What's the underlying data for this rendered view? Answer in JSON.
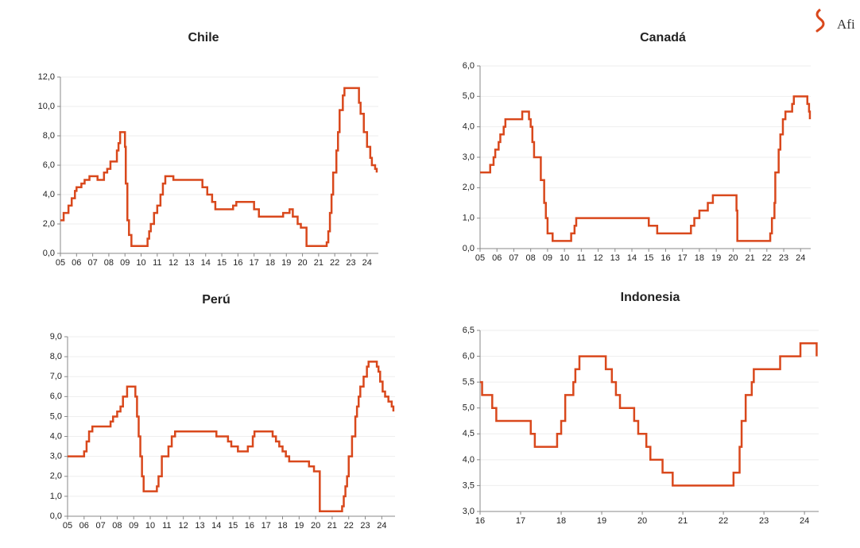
{
  "logo": "Afi",
  "chart_data": [
    {
      "type": "line",
      "title": "Chile",
      "color": "#d9481c",
      "grid": true,
      "step": true,
      "x": [
        5.0,
        5.2,
        5.5,
        5.7,
        5.9,
        6.0,
        6.3,
        6.5,
        6.8,
        7.3,
        7.7,
        7.9,
        8.1,
        8.5,
        8.6,
        8.7,
        9.0,
        9.05,
        9.15,
        9.25,
        9.4,
        10.4,
        10.5,
        10.6,
        10.8,
        11.0,
        11.2,
        11.35,
        11.5,
        12.0,
        13.8,
        14.1,
        14.4,
        14.6,
        15.7,
        15.9,
        17.0,
        17.3,
        18.8,
        19.2,
        19.4,
        19.7,
        19.9,
        20.25,
        21.5,
        21.6,
        21.7,
        21.8,
        21.9,
        22.1,
        22.2,
        22.3,
        22.5,
        22.6,
        23.5,
        23.6,
        23.8,
        24.0,
        24.2,
        24.3,
        24.5,
        24.6
      ],
      "values": [
        2.25,
        2.75,
        3.25,
        3.75,
        4.25,
        4.5,
        4.75,
        5.0,
        5.25,
        5.0,
        5.5,
        5.75,
        6.25,
        7.0,
        7.5,
        8.25,
        7.25,
        4.75,
        2.25,
        1.25,
        0.5,
        1.0,
        1.5,
        2.0,
        2.75,
        3.25,
        4.0,
        4.75,
        5.25,
        5.0,
        4.5,
        4.0,
        3.5,
        3.0,
        3.25,
        3.5,
        3.0,
        2.5,
        2.75,
        3.0,
        2.5,
        2.0,
        1.75,
        0.5,
        0.75,
        1.5,
        2.75,
        4.0,
        5.5,
        7.0,
        8.25,
        9.75,
        10.75,
        11.25,
        10.25,
        9.5,
        8.25,
        7.25,
        6.5,
        6.0,
        5.75,
        5.5
      ],
      "xlim": [
        5,
        24.7
      ],
      "xticks": [
        {
          "value": 5,
          "label": "05"
        },
        {
          "value": 6,
          "label": "06"
        },
        {
          "value": 7,
          "label": "07"
        },
        {
          "value": 8,
          "label": "08"
        },
        {
          "value": 9,
          "label": "09"
        },
        10,
        11,
        12,
        13,
        14,
        15,
        16,
        17,
        18,
        19,
        20,
        21,
        22,
        23,
        24
      ],
      "ylim": [
        0,
        12
      ],
      "yticks": [
        {
          "value": 0,
          "label": "0,0"
        },
        {
          "value": 2,
          "label": "2,0"
        },
        {
          "value": 4,
          "label": "4,0"
        },
        {
          "value": 6,
          "label": "6,0"
        },
        {
          "value": 8,
          "label": "8,0"
        },
        {
          "value": 10,
          "label": "10,0"
        },
        {
          "value": 12,
          "label": "12,0"
        }
      ]
    },
    {
      "type": "line",
      "title": "Canadá",
      "color": "#d9481c",
      "grid": true,
      "step": true,
      "x": [
        5.0,
        5.6,
        5.8,
        5.9,
        6.1,
        6.2,
        6.4,
        6.5,
        7.5,
        7.9,
        8.0,
        8.1,
        8.2,
        8.6,
        8.8,
        8.9,
        9.0,
        9.3,
        10.4,
        10.6,
        10.7,
        15.0,
        15.5,
        17.5,
        17.7,
        18.0,
        18.5,
        18.8,
        20.2,
        20.25,
        22.2,
        22.3,
        22.45,
        22.5,
        22.7,
        22.8,
        22.95,
        23.1,
        23.5,
        23.6,
        24.4,
        24.5,
        24.55
      ],
      "values": [
        2.5,
        2.75,
        3.0,
        3.25,
        3.5,
        3.75,
        4.0,
        4.25,
        4.5,
        4.25,
        4.0,
        3.5,
        3.0,
        2.25,
        1.5,
        1.0,
        0.5,
        0.25,
        0.5,
        0.75,
        1.0,
        0.75,
        0.5,
        0.75,
        1.0,
        1.25,
        1.5,
        1.75,
        1.25,
        0.25,
        0.5,
        1.0,
        1.5,
        2.5,
        3.25,
        3.75,
        4.25,
        4.5,
        4.75,
        5.0,
        4.75,
        4.5,
        4.25
      ],
      "xlim": [
        5,
        24.6
      ],
      "xticks": [
        {
          "value": 5,
          "label": "05"
        },
        {
          "value": 6,
          "label": "06"
        },
        {
          "value": 7,
          "label": "07"
        },
        {
          "value": 8,
          "label": "08"
        },
        {
          "value": 9,
          "label": "09"
        },
        10,
        11,
        12,
        13,
        14,
        15,
        16,
        17,
        18,
        19,
        20,
        21,
        22,
        23,
        24
      ],
      "ylim": [
        0,
        6
      ],
      "yticks": [
        {
          "value": 0,
          "label": "0,0"
        },
        {
          "value": 1,
          "label": "1,0"
        },
        {
          "value": 2,
          "label": "2,0"
        },
        {
          "value": 3,
          "label": "3,0"
        },
        {
          "value": 4,
          "label": "4,0"
        },
        {
          "value": 5,
          "label": "5,0"
        },
        {
          "value": 6,
          "label": "6,0"
        }
      ]
    },
    {
      "type": "line",
      "title": "Perú",
      "color": "#d9481c",
      "grid": true,
      "step": true,
      "x": [
        5.0,
        6.0,
        6.15,
        6.3,
        6.5,
        7.6,
        7.75,
        8.0,
        8.2,
        8.35,
        8.6,
        9.1,
        9.2,
        9.3,
        9.4,
        9.5,
        9.6,
        10.4,
        10.5,
        10.7,
        11.1,
        11.3,
        11.5,
        14.0,
        14.7,
        14.9,
        15.3,
        15.9,
        16.2,
        16.3,
        17.4,
        17.6,
        17.8,
        18.0,
        18.2,
        18.4,
        19.6,
        19.9,
        20.25,
        21.6,
        21.7,
        21.8,
        21.9,
        22.0,
        22.2,
        22.4,
        22.5,
        22.6,
        22.7,
        22.9,
        23.1,
        23.2,
        23.7,
        23.8,
        23.9,
        24.05,
        24.2,
        24.4,
        24.6,
        24.7
      ],
      "values": [
        3.0,
        3.25,
        3.75,
        4.25,
        4.5,
        4.75,
        5.0,
        5.25,
        5.5,
        6.0,
        6.5,
        6.0,
        5.0,
        4.0,
        3.0,
        2.0,
        1.25,
        1.5,
        2.0,
        3.0,
        3.5,
        4.0,
        4.25,
        4.0,
        3.75,
        3.5,
        3.25,
        3.5,
        4.0,
        4.25,
        4.0,
        3.75,
        3.5,
        3.25,
        3.0,
        2.75,
        2.5,
        2.25,
        0.25,
        0.5,
        1.0,
        1.5,
        2.0,
        3.0,
        4.0,
        5.0,
        5.5,
        6.0,
        6.5,
        7.0,
        7.5,
        7.75,
        7.5,
        7.25,
        6.75,
        6.25,
        6.0,
        5.75,
        5.5,
        5.25
      ],
      "xlim": [
        5,
        24.8
      ],
      "xticks": [
        {
          "value": 5,
          "label": "05"
        },
        {
          "value": 6,
          "label": "06"
        },
        {
          "value": 7,
          "label": "07"
        },
        {
          "value": 8,
          "label": "08"
        },
        {
          "value": 9,
          "label": "09"
        },
        10,
        11,
        12,
        13,
        14,
        15,
        16,
        17,
        18,
        19,
        20,
        21,
        22,
        23,
        24
      ],
      "ylim": [
        0,
        9
      ],
      "yticks": [
        {
          "value": 0,
          "label": "0,0"
        },
        {
          "value": 1,
          "label": "1,0"
        },
        {
          "value": 2,
          "label": "2,0"
        },
        {
          "value": 3,
          "label": "3,0"
        },
        {
          "value": 4,
          "label": "4,0"
        },
        {
          "value": 5,
          "label": "5,0"
        },
        {
          "value": 6,
          "label": "6,0"
        },
        {
          "value": 7,
          "label": "7,0"
        },
        {
          "value": 8,
          "label": "8,0"
        },
        {
          "value": 9,
          "label": "9,0"
        }
      ]
    },
    {
      "type": "line",
      "title": "Indonesia",
      "color": "#d9481c",
      "grid": true,
      "step": true,
      "x": [
        16.0,
        16.05,
        16.3,
        16.4,
        17.25,
        17.35,
        17.9,
        18.0,
        18.1,
        18.3,
        18.35,
        18.45,
        19.1,
        19.25,
        19.35,
        19.45,
        19.8,
        19.9,
        20.1,
        20.2,
        20.5,
        20.75,
        22.25,
        22.4,
        22.45,
        22.55,
        22.7,
        22.75,
        23.4,
        23.9,
        24.3
      ],
      "values": [
        5.5,
        5.25,
        5.0,
        4.75,
        4.5,
        4.25,
        4.5,
        4.75,
        5.25,
        5.5,
        5.75,
        6.0,
        5.75,
        5.5,
        5.25,
        5.0,
        4.75,
        4.5,
        4.25,
        4.0,
        3.75,
        3.5,
        3.75,
        4.25,
        4.75,
        5.25,
        5.5,
        5.75,
        6.0,
        6.25,
        6.0
      ],
      "xlim": [
        16,
        24.35
      ],
      "xticks": [
        16,
        17,
        18,
        19,
        20,
        21,
        22,
        23,
        24
      ],
      "ylim": [
        3,
        6.5
      ],
      "yticks": [
        {
          "value": 3,
          "label": "3,0"
        },
        {
          "value": 3.5,
          "label": "3,5"
        },
        {
          "value": 4,
          "label": "4,0"
        },
        {
          "value": 4.5,
          "label": "4,5"
        },
        {
          "value": 5,
          "label": "5,0"
        },
        {
          "value": 5.5,
          "label": "5,5"
        },
        {
          "value": 6,
          "label": "6,0"
        },
        {
          "value": 6.5,
          "label": "6,5"
        }
      ]
    }
  ]
}
